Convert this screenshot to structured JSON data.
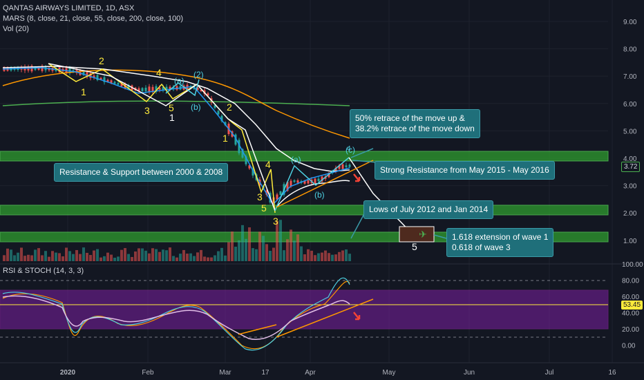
{
  "header": {
    "title": "QANTAS AIRWAYS LIMITED, 1D, ASX",
    "indicator_mars": "MARS (8, close, 21, close, 55, close, 200, close, 100)",
    "indicator_vol": "Vol (20)",
    "indicator_rsi": "RSI & STOCH (14, 3, 3)"
  },
  "current_price": "3.72",
  "rsi_current": "53.45",
  "annotations": {
    "retrace": [
      "50% retrace of the move up &",
      "38.2% retrace of the move down"
    ],
    "strong_resistance": "Strong Resistance from May 2015 - May 2016",
    "resistance_support": "Resistance & Support between 2000 & 2008",
    "lows": "Lows of July 2012 and Jan 2014",
    "extension": [
      "1.618  extension of wave 1",
      "0.618 of wave 3"
    ]
  },
  "wave_labels": {
    "yellow": [
      "1",
      "2",
      "3",
      "4",
      "5",
      "1",
      "2",
      "3",
      "4",
      "5",
      "3"
    ],
    "white": [
      "1",
      "5"
    ],
    "cyan": [
      "(a)",
      "(b)",
      "(2)",
      "(a)",
      "(b)",
      "(c)",
      "4"
    ]
  },
  "colors": {
    "background": "#131722",
    "green_zone": "#2e9c2e",
    "magenta_band": "#7b1fa2",
    "ma_white": "#ffffff",
    "ma_blue": "#2196f3",
    "ma_orange": "#ff9800",
    "ma_green": "#4caf50",
    "up_candle": "#26a69a",
    "down_candle": "#ef5350",
    "wave_yellow": "#ffeb3b",
    "wave_cyan": "#4dd0e1",
    "callout_bg": "#1f6f7a"
  },
  "chart_data": {
    "type": "line",
    "price_axis": {
      "ticks": [
        "9.00",
        "8.00",
        "7.00",
        "6.00",
        "5.00",
        "4.00",
        "3.00",
        "2.00",
        "1.00"
      ],
      "range": [
        0.6,
        9.3
      ]
    },
    "rsi_axis": {
      "ticks": [
        "100.00",
        "80.00",
        "60.00",
        "40.00",
        "20.00",
        "0.00"
      ],
      "range": [
        0,
        100
      ]
    },
    "x_ticks": [
      "2020",
      "Feb",
      "Mar",
      "17",
      "Apr",
      "May",
      "Jun",
      "Jul",
      "16"
    ],
    "zones": [
      {
        "label": "Strong Resistance from May 2015 - May 2016",
        "from": 3.9,
        "to": 4.3
      },
      {
        "label": "Lows of July 2012 and Jan 2014",
        "from": 1.97,
        "to": 2.35
      },
      {
        "label": "Resistance & Support between 2000 & 2008",
        "from": 1.0,
        "to": 1.37
      }
    ],
    "target_box": {
      "from": 1.0,
      "to": 1.4,
      "wave": "5"
    },
    "wave_path_x": [
      "2019-12-27",
      "2020-01-20",
      "2020-01-29",
      "2020-02-05",
      "2020-02-12",
      "2020-02-19",
      "2020-02-24",
      "2020-03-02",
      "2020-03-06",
      "2020-03-11",
      "2020-03-16",
      "2020-04-14",
      "2020-05-08"
    ],
    "wave_path_y": [
      7.5,
      6.85,
      7.35,
      6.1,
      6.95,
      6.1,
      6.85,
      5.4,
      6.15,
      4.4,
      2.1,
      4.0,
      1.2
    ],
    "price_series_x": [
      "2019-12-20",
      "2019-12-27",
      "2020-01-03",
      "2020-01-10",
      "2020-01-17",
      "2020-01-24",
      "2020-01-31",
      "2020-02-07",
      "2020-02-14",
      "2020-02-21",
      "2020-02-28",
      "2020-03-06",
      "2020-03-13",
      "2020-03-17",
      "2020-03-20",
      "2020-03-27",
      "2020-04-03",
      "2020-04-08",
      "2020-04-14",
      "2020-04-20"
    ],
    "price_series_y": [
      7.2,
      7.3,
      7.0,
      7.1,
      7.2,
      6.9,
      6.4,
      6.6,
      6.6,
      6.5,
      5.8,
      5.2,
      3.5,
      2.2,
      2.5,
      3.4,
      3.2,
      3.05,
      3.6,
      3.72
    ],
    "rsi_series_x": [
      "2019-12-20",
      "2020-01-03",
      "2020-01-17",
      "2020-01-31",
      "2020-02-14",
      "2020-02-28",
      "2020-03-13",
      "2020-03-20",
      "2020-04-03",
      "2020-04-14",
      "2020-04-20"
    ],
    "rsi_series_y": [
      62,
      58,
      45,
      50,
      55,
      35,
      15,
      8,
      40,
      58,
      53.45
    ],
    "series": [
      {
        "name": "MA 8"
      },
      {
        "name": "MA 21"
      },
      {
        "name": "MA 55"
      },
      {
        "name": "MA 200"
      }
    ]
  }
}
